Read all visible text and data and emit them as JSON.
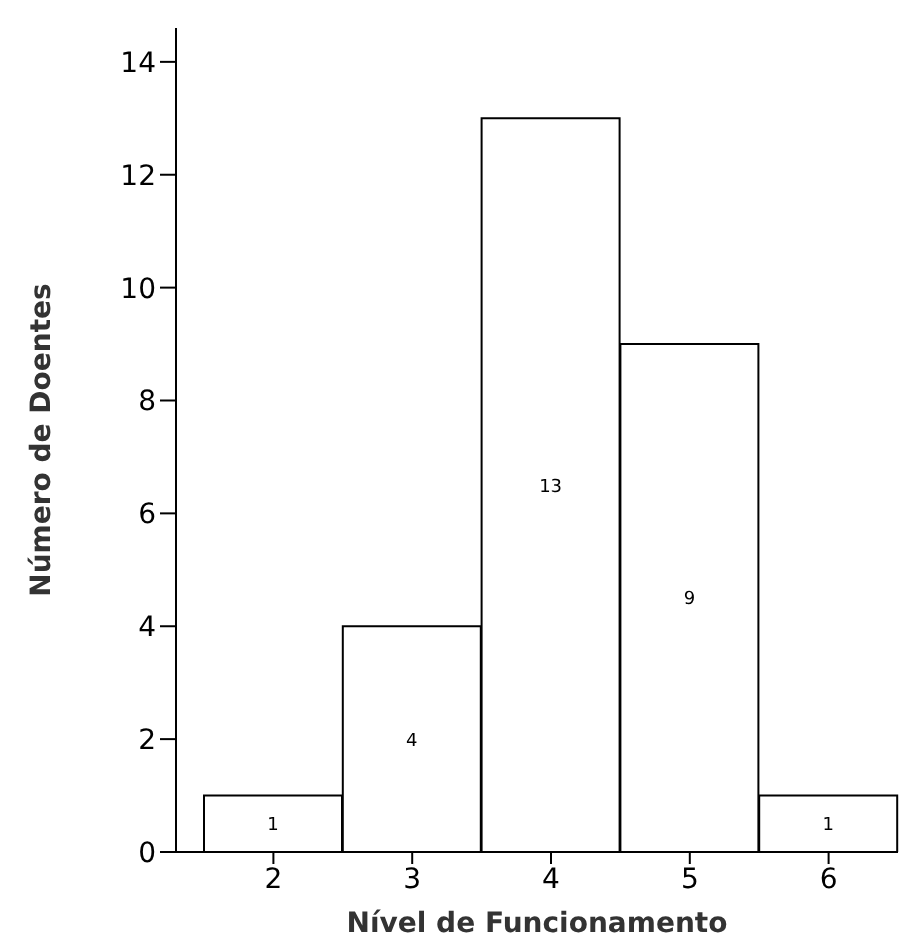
{
  "chart_data": {
    "type": "bar",
    "xlabel": "Nível de Funcionamento",
    "ylabel": "Número de Doentes",
    "categories": [
      "2",
      "3",
      "4",
      "5",
      "6"
    ],
    "values": [
      1,
      4,
      13,
      9,
      1
    ],
    "color": "#ffffff",
    "ylim": [
      0,
      14.6
    ],
    "yticks": [
      0,
      2,
      4,
      6,
      8,
      10,
      12,
      14
    ],
    "grid": false,
    "legend": false,
    "data_labels": true
  }
}
